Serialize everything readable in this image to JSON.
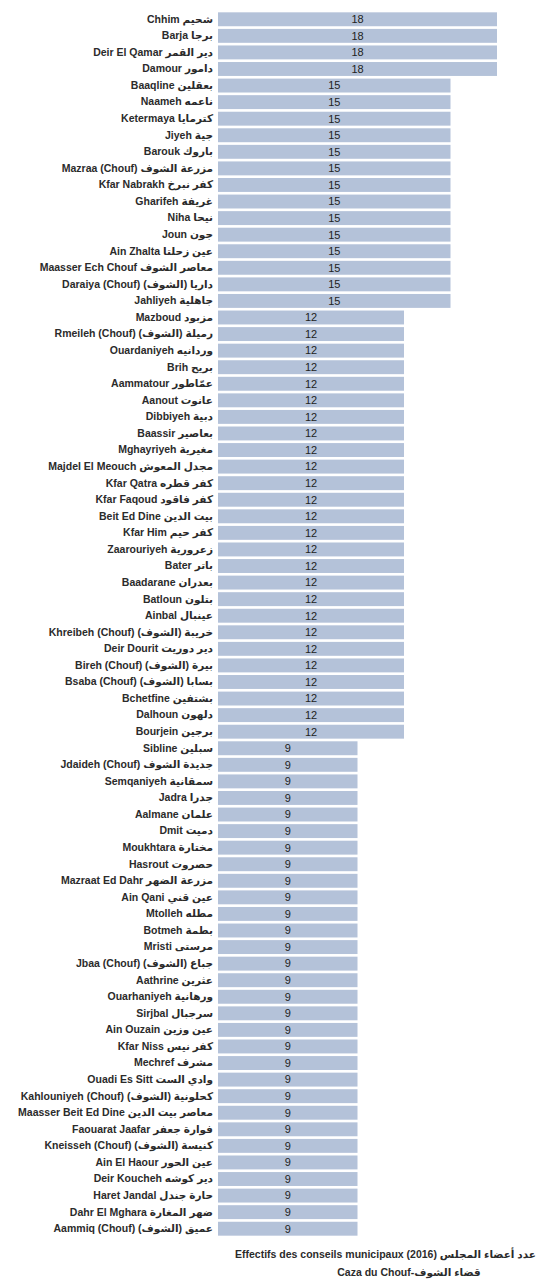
{
  "chart_data": {
    "type": "bar",
    "orientation": "horizontal",
    "title": "Effectifs des conseils municipaux (2016) عدد أعضاء المجلس",
    "subtitle": "Caza du Chouf-قضاء الشوف",
    "categories": [
      "Chhim شحيم",
      "Barja برجا",
      "Deir El Qamar دير القمر",
      "Damour دامور",
      "Baaqline بعقلين",
      "Naameh ناعمه",
      "Ketermaya كترمايا",
      "Jiyeh جية",
      "Barouk باروك",
      "Mazraa (Chouf) مزرعة الشوف",
      "Kfar Nabrakh كفر نبرخ",
      "Gharifeh غريفة",
      "Niha نيحا",
      "Joun جون",
      "Ain Zhalta عين زحلتا",
      "Maasser Ech Chouf معاصر الشوف",
      "Daraiya (Chouf) داريا (الشوف)",
      "Jahliyeh جاهلية",
      "Mazboud مزبود",
      "Rmeileh (Chouf) رميلة (الشوف)",
      "Ouardaniyeh وردانيه",
      "Brih بريح",
      "Aammatour عمّاطور",
      "Aanout عانوت",
      "Dibbiyeh دبية",
      "Baassir بعاصير",
      "Mghayriyeh مغيرية",
      "Majdel El Meouch مجدل المعوش",
      "Kfar Qatra كفر قطره",
      "Kfar Faqoud كفر فاقود",
      "Beit Ed Dine بيت الدين",
      "Kfar Him كفر حيم",
      "Zaarouriyeh زعرورية",
      "Bater باتر",
      "Baadarane بعدران",
      "Batloun بتلون",
      "Ainbal عينبال",
      "Khreibeh (Chouf) خريبة (الشوف)",
      "Deir Dourit دير دوريت",
      "Bireh (Chouf) بيرة (الشوف)",
      "Bsaba (Chouf) بسابا (الشوف)",
      "Bchetfine بشتفين",
      "Dalhoun دلهون",
      "Bourjein برجين",
      "Sibline سبلين",
      "Jdaideh (Chouf) جديدة الشوف",
      "Semqaniyeh سمقانية",
      "Jadra جدرا",
      "Aalmane علمان",
      "Dmit دميت",
      "Moukhtara مختارة",
      "Hasrout حصروت",
      "Mazraat Ed Dahr مزرعة الضهر",
      "Ain Qani عين قني",
      "Mtolleh مطله",
      "Botmeh بطمة",
      "Mristi مرستى",
      "Jbaa (Chouf) جباع (الشوف)",
      "Aathrine عثرين",
      "Ouarhaniyeh ورهانية",
      "Sirjbal سرجبال",
      "Ain Ouzain عين وزين",
      "Kfar Niss كفر نيس",
      "Mechref مشرف",
      "Ouadi Es Sitt وادي الست",
      "Kahlouniyeh (Chouf) كحلونية (الشوف)",
      "Maasser Beit Ed Dine معاصر بيت الدين",
      "Faouarat Jaafar فوارة جعفر",
      "Kneisseh (Chouf) كنيسة (الشوف)",
      "Ain El Haour عين الحور",
      "Deir Koucheh دير كوشه",
      "Haret Jandal حارة جندل",
      "Dahr El Mghara ضهر المغارة",
      "Aammiq (Chouf) عميق (الشوف)"
    ],
    "values": [
      18,
      18,
      18,
      18,
      15,
      15,
      15,
      15,
      15,
      15,
      15,
      15,
      15,
      15,
      15,
      15,
      15,
      15,
      12,
      12,
      12,
      12,
      12,
      12,
      12,
      12,
      12,
      12,
      12,
      12,
      12,
      12,
      12,
      12,
      12,
      12,
      12,
      12,
      12,
      12,
      12,
      12,
      12,
      12,
      9,
      9,
      9,
      9,
      9,
      9,
      9,
      9,
      9,
      9,
      9,
      9,
      9,
      9,
      9,
      9,
      9,
      9,
      9,
      9,
      9,
      9,
      9,
      9,
      9,
      9,
      9,
      9,
      9,
      9
    ],
    "color": "#b4c2d9",
    "xlim": [
      0,
      18
    ],
    "data_labels": true,
    "tick_labels": false,
    "grid": false
  }
}
